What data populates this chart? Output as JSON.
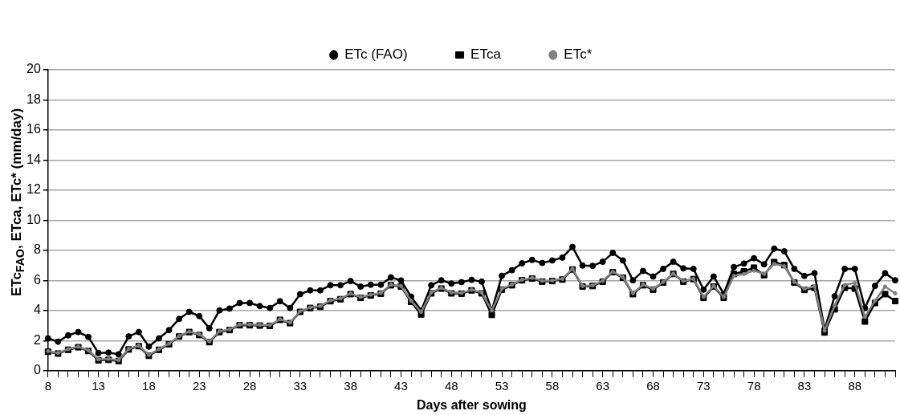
{
  "chart_data": {
    "type": "line",
    "xlabel": "Days after sowing",
    "ylabel": "ETc$_{FAO}$, ETca, ETc* (mm/day)",
    "categories": [
      "8",
      null,
      null,
      null,
      null,
      "13",
      null,
      null,
      null,
      null,
      "18",
      null,
      null,
      null,
      null,
      "23",
      null,
      null,
      null,
      null,
      "28",
      null,
      null,
      null,
      null,
      "33",
      null,
      null,
      null,
      null,
      "38",
      null,
      null,
      null,
      null,
      "43",
      null,
      null,
      null,
      null,
      "48",
      null,
      null,
      null,
      null,
      "53",
      null,
      null,
      null,
      null,
      "58",
      null,
      null,
      null,
      null,
      "63",
      null,
      null,
      null,
      null,
      "68",
      null,
      null,
      null,
      null,
      "73",
      null,
      null,
      null,
      null,
      "78",
      null,
      null,
      null,
      null,
      "83",
      null,
      null,
      null,
      null,
      "88",
      null,
      null,
      null,
      null
    ],
    "ylim": [
      0,
      20
    ],
    "yticks": [
      0,
      2,
      4,
      6,
      8,
      10,
      12,
      14,
      16,
      18,
      20
    ],
    "grid": "y",
    "legend": "top",
    "series": [
      {
        "name": "ETc (FAO)",
        "color": "#000000",
        "marker": "circle",
        "values": [
          2.15,
          1.93,
          2.35,
          2.57,
          2.25,
          1.17,
          1.2,
          1.09,
          2.28,
          2.57,
          1.6,
          2.15,
          2.7,
          3.44,
          3.91,
          3.63,
          2.82,
          4.01,
          4.13,
          4.5,
          4.5,
          4.3,
          4.17,
          4.62,
          4.17,
          5.09,
          5.34,
          5.34,
          5.68,
          5.68,
          5.96,
          5.59,
          5.71,
          5.71,
          6.21,
          6.0,
          4.92,
          4.0,
          5.68,
          6.01,
          5.79,
          5.89,
          6.04,
          5.92,
          4.0,
          6.31,
          6.68,
          7.14,
          7.36,
          7.16,
          7.33,
          7.52,
          8.23,
          6.99,
          6.97,
          7.24,
          7.83,
          7.33,
          6.01,
          6.63,
          6.26,
          6.77,
          7.24,
          6.8,
          6.77,
          5.39,
          6.26,
          5.1,
          6.89,
          7.12,
          7.48,
          7.07,
          8.11,
          7.94,
          6.77,
          6.3,
          6.48,
          2.75,
          4.95,
          6.77,
          6.77,
          4.16,
          5.64,
          6.48,
          6.01
        ]
      },
      {
        "name": "ETca",
        "color": "#000000",
        "marker": "square",
        "values": [
          1.26,
          1.14,
          1.39,
          1.56,
          1.31,
          0.69,
          0.72,
          0.64,
          1.41,
          1.63,
          0.99,
          1.39,
          1.76,
          2.27,
          2.57,
          2.37,
          1.9,
          2.57,
          2.7,
          3.02,
          3.02,
          3.0,
          2.98,
          3.38,
          3.16,
          3.91,
          4.17,
          4.25,
          4.62,
          4.75,
          5.09,
          4.84,
          5.0,
          5.12,
          5.68,
          5.59,
          4.58,
          3.74,
          5.14,
          5.46,
          5.14,
          5.12,
          5.34,
          5.14,
          3.71,
          5.39,
          5.68,
          6.01,
          6.13,
          5.92,
          5.96,
          6.06,
          6.73,
          5.59,
          5.63,
          5.92,
          6.55,
          6.18,
          5.09,
          5.68,
          5.39,
          5.86,
          6.43,
          5.92,
          6.09,
          4.84,
          5.59,
          4.84,
          6.43,
          6.6,
          6.85,
          6.35,
          7.22,
          7.02,
          5.86,
          5.37,
          5.51,
          2.54,
          4.08,
          5.51,
          5.46,
          3.27,
          4.5,
          5.09,
          4.63
        ]
      },
      {
        "name": "ETc*",
        "color": "#808080",
        "marker": "circle",
        "values": [
          1.3,
          1.18,
          1.43,
          1.6,
          1.35,
          0.75,
          0.78,
          0.7,
          1.45,
          1.67,
          1.05,
          1.43,
          1.8,
          2.3,
          2.6,
          2.42,
          1.95,
          2.62,
          2.75,
          3.07,
          3.07,
          3.05,
          3.03,
          3.42,
          3.2,
          3.95,
          4.2,
          4.3,
          4.67,
          4.8,
          5.12,
          4.9,
          5.05,
          5.17,
          5.72,
          5.63,
          4.65,
          3.9,
          5.2,
          5.5,
          5.2,
          5.17,
          5.38,
          5.2,
          4.0,
          5.45,
          5.72,
          6.05,
          6.17,
          5.97,
          6.0,
          6.1,
          6.77,
          5.63,
          5.67,
          5.97,
          6.58,
          6.22,
          5.15,
          5.72,
          5.45,
          5.9,
          6.45,
          5.97,
          6.1,
          4.9,
          5.63,
          4.9,
          6.3,
          6.43,
          6.65,
          6.43,
          7.1,
          6.95,
          5.9,
          5.45,
          5.6,
          2.66,
          4.33,
          5.71,
          5.83,
          3.57,
          4.65,
          5.59,
          5.14
        ]
      }
    ]
  }
}
